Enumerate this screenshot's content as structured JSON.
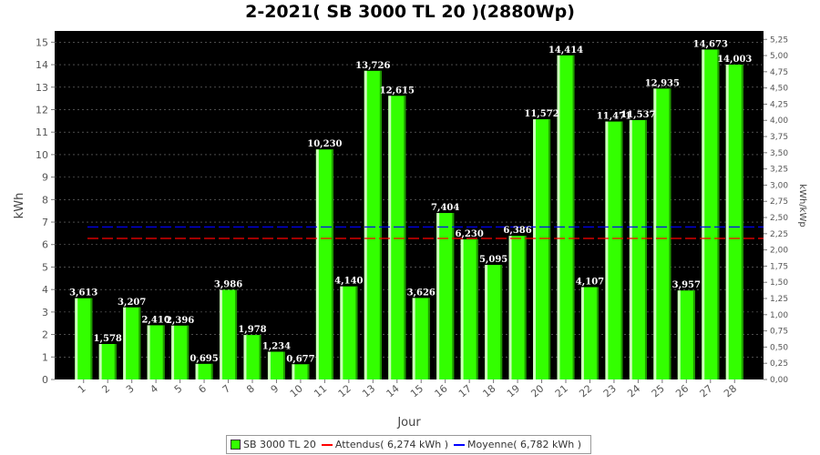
{
  "title": "2-2021( SB 3000 TL 20 )(2880Wp)",
  "chart_data": {
    "type": "bar",
    "title": "2-2021( SB 3000 TL 20 )(2880Wp)",
    "xlabel": "Jour",
    "ylabel": "kWh",
    "y2label": "kWh/kWp",
    "ylim": [
      0,
      15.5
    ],
    "y2lim": [
      0,
      5.38
    ],
    "yticks": [
      "0",
      "1",
      "2",
      "3",
      "4",
      "5",
      "6",
      "7",
      "8",
      "9",
      "10",
      "11",
      "12",
      "13",
      "14",
      "15"
    ],
    "y2ticks": [
      "0,00",
      "0,25",
      "0,50",
      "0,75",
      "1,00",
      "1,25",
      "1,50",
      "1,75",
      "2,00",
      "2,25",
      "2,50",
      "2,75",
      "3,00",
      "3,25",
      "3,50",
      "3,75",
      "4,00",
      "4,25",
      "4,50",
      "4,75",
      "5,00",
      "5,25"
    ],
    "categories": [
      "1",
      "2",
      "3",
      "4",
      "5",
      "6",
      "7",
      "8",
      "9",
      "10",
      "11",
      "12",
      "13",
      "14",
      "15",
      "16",
      "17",
      "18",
      "19",
      "20",
      "21",
      "22",
      "23",
      "24",
      "25",
      "26",
      "27",
      "28"
    ],
    "series": [
      {
        "name": "SB 3000 TL 20",
        "color": "#33ff00",
        "values": [
          3.613,
          1.578,
          3.207,
          2.41,
          2.396,
          0.695,
          3.986,
          1.978,
          1.234,
          0.677,
          10.23,
          4.14,
          13.726,
          12.615,
          3.626,
          7.404,
          6.23,
          5.095,
          6.386,
          11.572,
          14.414,
          4.107,
          11.471,
          11.537,
          12.935,
          3.957,
          14.673,
          14.003
        ],
        "labels": [
          "3,613",
          "1,578",
          "3,207",
          "2,410",
          "2,396",
          "0,695",
          "3,986",
          "1,978",
          "1,234",
          "0,677",
          "10,230",
          "4,140",
          "13,726",
          "12,615",
          "3,626",
          "7,404",
          "6,230",
          "5,095",
          "6,386",
          "11,572",
          "14,414",
          "4,107",
          "11,471",
          "11,537",
          "12,935",
          "3,957",
          "14,673",
          "14,003"
        ]
      }
    ],
    "reference_lines": [
      {
        "name": "Attendus",
        "value": 6.274,
        "color": "#ff0000",
        "dashed": true
      },
      {
        "name": "Moyenne",
        "value": 6.782,
        "color": "#0000ff",
        "dashed": true
      }
    ],
    "legend": {
      "position": "bottom",
      "items": [
        "SB 3000 TL 20",
        "Attendus( 6,274 kWh )",
        "Moyenne( 6,782 kWh )"
      ]
    },
    "grid": true,
    "background": "#000000"
  }
}
